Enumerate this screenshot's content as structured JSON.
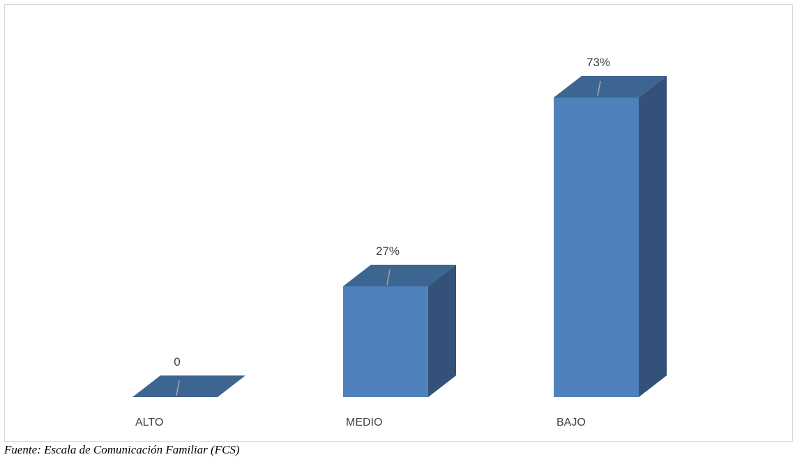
{
  "chart_data": {
    "type": "bar",
    "style": "3d-column",
    "categories": [
      "ALTO",
      "MEDIO",
      "BAJO"
    ],
    "values": [
      0,
      27,
      73
    ],
    "data_labels": [
      "0",
      "27%",
      "73%"
    ],
    "title": "",
    "xlabel": "",
    "ylabel": "",
    "ylim": [
      0,
      80
    ],
    "grid": false,
    "legend": "none",
    "colors": {
      "front": "#4f81bd",
      "top": "#3d6592",
      "side": "#335179",
      "leader_line": "#a6a6a6",
      "frame": "#d9d9d9"
    }
  },
  "source_note": "Fuente: Escala de Comunicación Familiar (FCS)"
}
